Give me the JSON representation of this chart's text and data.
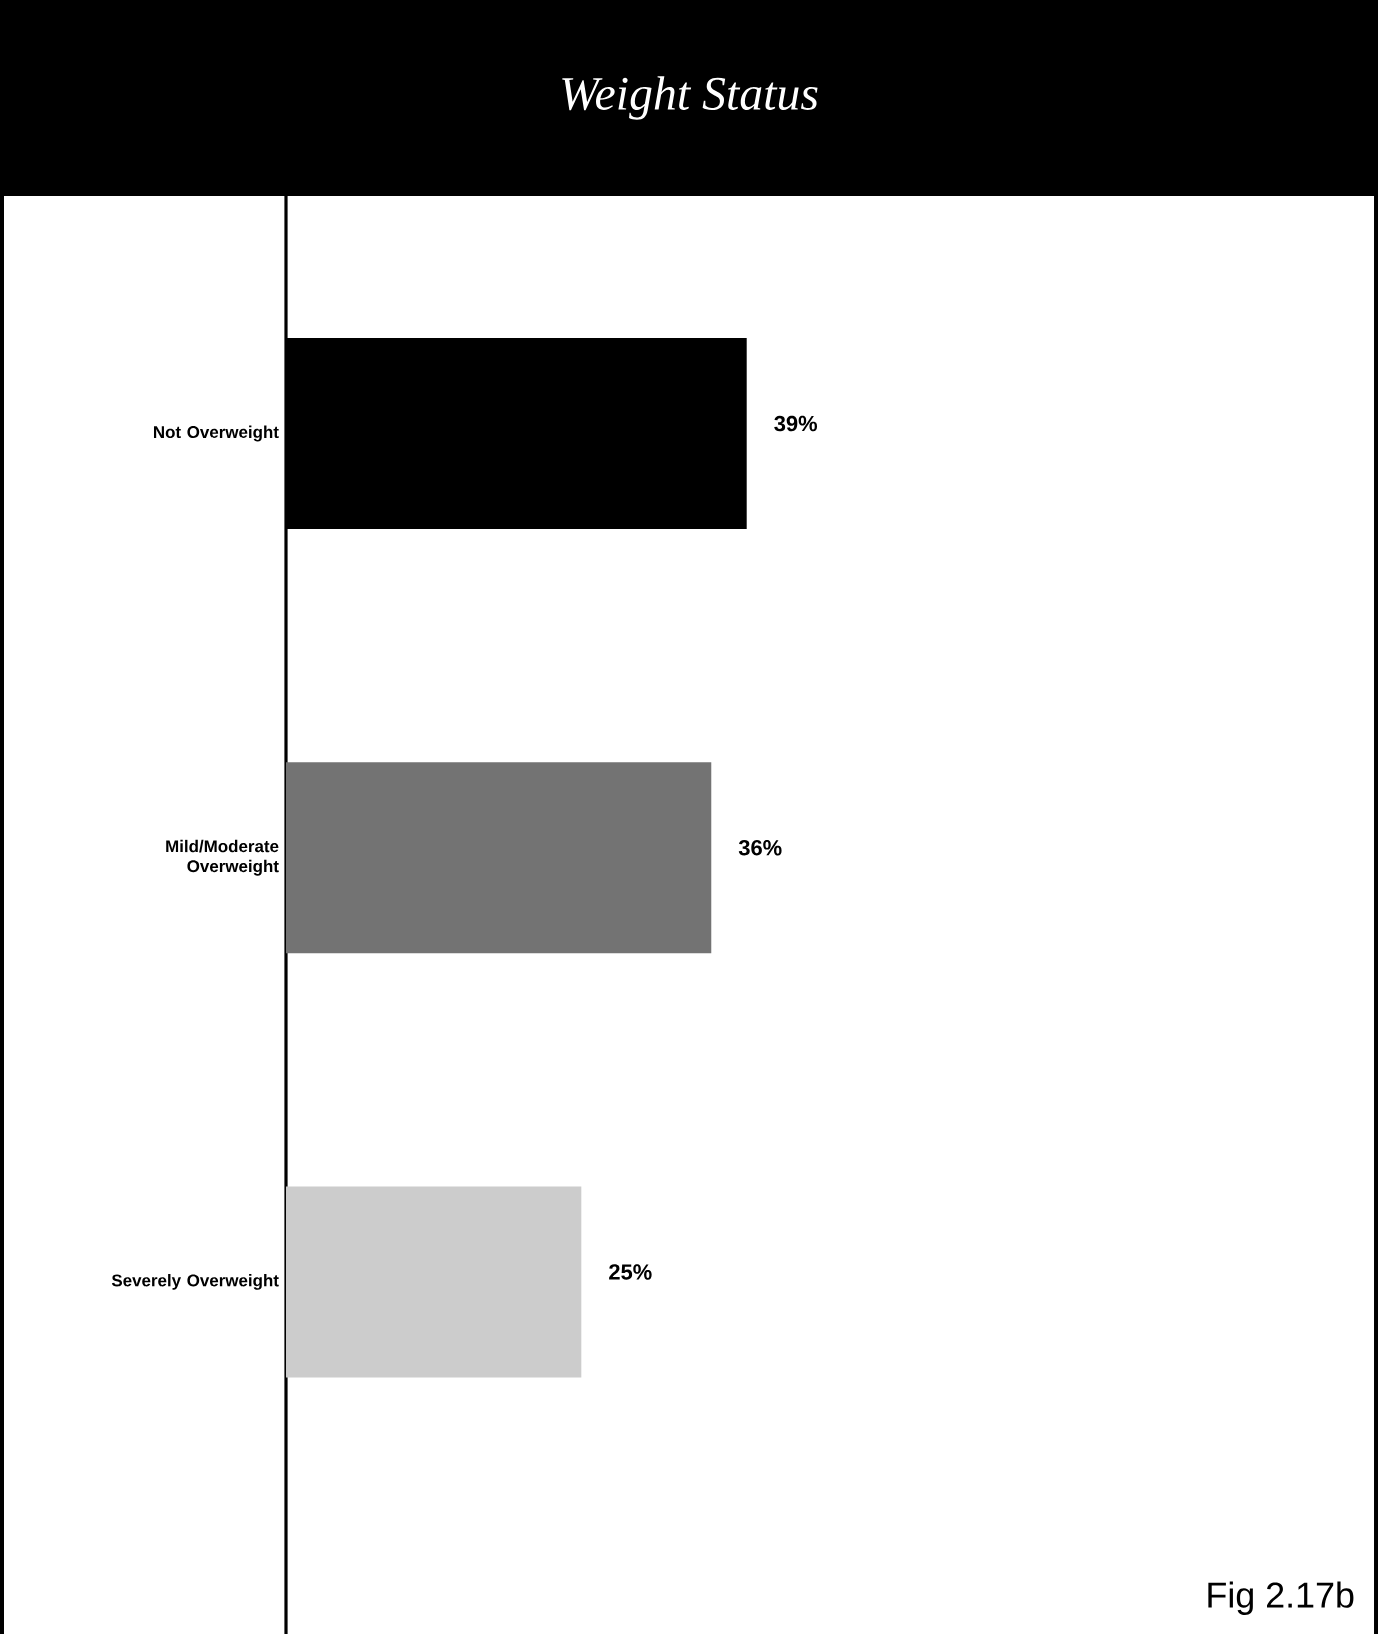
{
  "chart_data": {
    "type": "bar",
    "orientation": "horizontal",
    "title": "Weight Status",
    "categories": [
      "Not Overweight",
      "Mild/Moderate Overweight",
      "Severely Overweight"
    ],
    "values": [
      39,
      36,
      25
    ],
    "colors": [
      "#000000",
      "#737373",
      "#cccccc"
    ],
    "value_labels": [
      "39%",
      "36%",
      "25%"
    ],
    "annotations": [
      "Fig 2.17b"
    ]
  }
}
